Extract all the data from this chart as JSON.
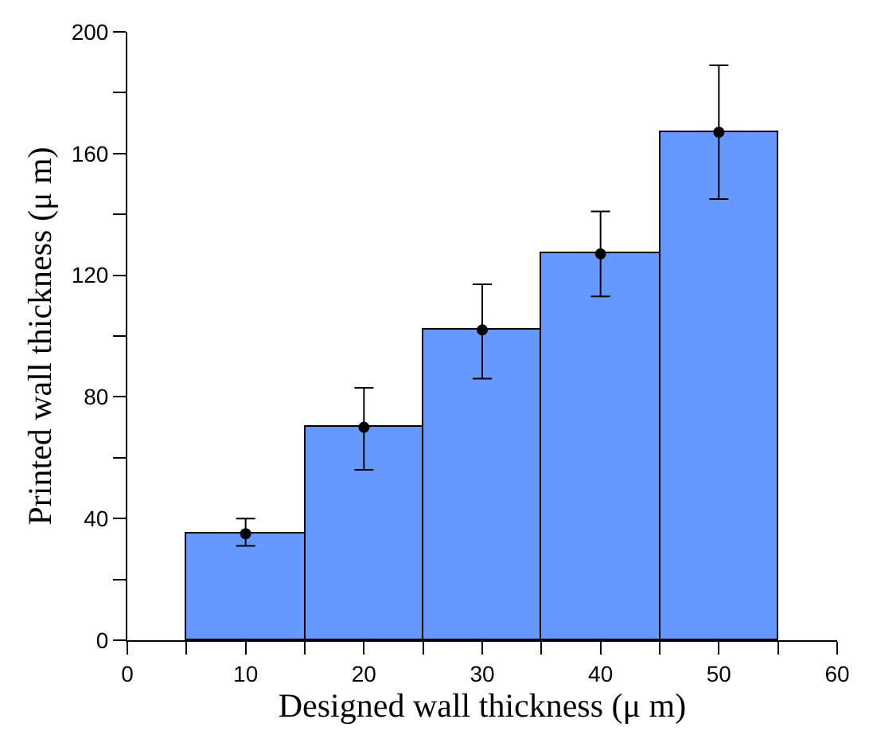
{
  "chart_data": {
    "type": "bar",
    "xlabel": "Designed wall thickness (μ m)",
    "ylabel": "Printed wall thickness (μ m)",
    "x": [
      10,
      20,
      30,
      40,
      50
    ],
    "series": [
      {
        "color": "#6699ff",
        "values": [
          35,
          70,
          102,
          127,
          167
        ]
      },
      {
        "type": "scatter",
        "color": "#000000",
        "values": [
          35,
          70,
          102,
          127,
          167
        ],
        "errors": [
          [
            31,
            40
          ],
          [
            56,
            83
          ],
          [
            86,
            117
          ],
          [
            113,
            141
          ],
          [
            145,
            189
          ]
        ]
      }
    ],
    "marker": "circle",
    "xlim": [
      0,
      60
    ],
    "xticks": [
      0,
      {
        "value": 5,
        "label": null
      },
      10,
      {
        "value": 15,
        "label": null
      },
      20,
      {
        "value": 25,
        "label": null
      },
      30,
      {
        "value": 35,
        "label": null
      },
      40,
      {
        "value": 45,
        "label": null
      },
      50,
      {
        "value": 55,
        "label": null
      },
      60
    ],
    "ylim": [
      0,
      200
    ],
    "yticks": [
      0,
      {
        "value": 20,
        "label": null
      },
      40,
      {
        "value": 60,
        "label": null
      },
      80,
      {
        "value": 100,
        "label": null
      },
      120,
      {
        "value": 140,
        "label": null
      },
      160,
      {
        "value": 180,
        "label": null
      },
      200
    ],
    "legend": false
  }
}
